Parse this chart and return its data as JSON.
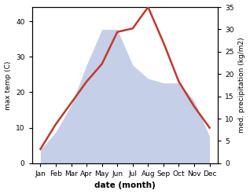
{
  "months": [
    "Jan",
    "Feb",
    "Mar",
    "Apr",
    "May",
    "Jun",
    "Jul",
    "Aug",
    "Sep",
    "Oct",
    "Nov",
    "Dec"
  ],
  "temperature": [
    4,
    11,
    17,
    23,
    28,
    37,
    38,
    44,
    34,
    23,
    16,
    10
  ],
  "precipitation": [
    3,
    7,
    13,
    22,
    30,
    30,
    22,
    19,
    18,
    18,
    14,
    6
  ],
  "temp_color": "#c0392b",
  "precip_color_fill": "#c5cfe8",
  "temp_ylim": [
    0,
    44
  ],
  "temp_yticks": [
    0,
    10,
    20,
    30,
    40
  ],
  "precip_ylim": [
    0,
    35
  ],
  "precip_yticks": [
    0,
    5,
    10,
    15,
    20,
    25,
    30,
    35
  ],
  "xlabel": "date (month)",
  "ylabel_left": "max temp (C)",
  "ylabel_right": "med. precipitation (kg/m2)"
}
